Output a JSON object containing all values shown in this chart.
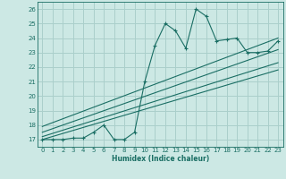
{
  "xlabel": "Humidex (Indice chaleur)",
  "bg_color": "#cce8e4",
  "grid_color": "#aacfcb",
  "line_color": "#1a6e64",
  "xlim": [
    -0.5,
    23.5
  ],
  "ylim": [
    16.5,
    26.5
  ],
  "xticks": [
    0,
    1,
    2,
    3,
    4,
    5,
    6,
    7,
    8,
    9,
    10,
    11,
    12,
    13,
    14,
    15,
    16,
    17,
    18,
    19,
    20,
    21,
    22,
    23
  ],
  "yticks": [
    17,
    18,
    19,
    20,
    21,
    22,
    23,
    24,
    25,
    26
  ],
  "scatter_x": [
    0,
    1,
    2,
    3,
    4,
    5,
    6,
    7,
    8,
    9,
    10,
    11,
    12,
    13,
    14,
    15,
    16,
    17,
    18,
    19,
    20,
    21,
    22,
    23
  ],
  "scatter_y": [
    17.0,
    17.0,
    17.0,
    17.1,
    17.1,
    17.5,
    18.0,
    17.0,
    17.0,
    17.5,
    21.0,
    23.5,
    25.0,
    24.5,
    23.3,
    26.0,
    25.5,
    23.8,
    23.9,
    24.0,
    23.0,
    23.0,
    23.1,
    23.8
  ],
  "line1_x": [
    0,
    23
  ],
  "line1_y": [
    17.0,
    21.8
  ],
  "line2_x": [
    0,
    23
  ],
  "line2_y": [
    17.2,
    22.3
  ],
  "line3_x": [
    0,
    23
  ],
  "line3_y": [
    17.5,
    23.2
  ],
  "line4_x": [
    0,
    23
  ],
  "line4_y": [
    17.9,
    24.0
  ]
}
